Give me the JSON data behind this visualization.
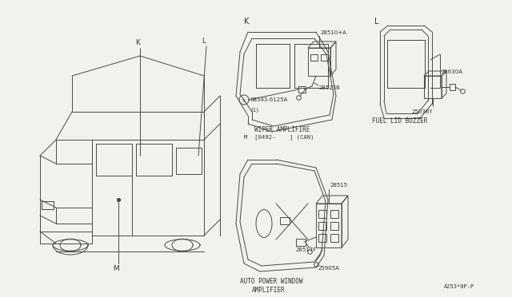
{
  "bg_color": "#f2f2ec",
  "line_color": "#4a4a4a",
  "border_color": "#aaaaaa",
  "text_color": "#333333",
  "diagram_label_K": "K",
  "diagram_label_L": "L",
  "car_label_K": "K",
  "car_label_L": "L",
  "car_label_M": "M",
  "parts": {
    "wiper_amp_number": "28510+A",
    "wiper_conn1": "28523B",
    "wiper_bolt": "08543-6125A",
    "wiper_bolt_note": "(1)",
    "wiper_label1": "WIPER AMPLIFIRE",
    "wiper_label2": "M  [0492-    ] (CAN)",
    "fuel_part1": "25630A",
    "fuel_part2": "25038Y",
    "fuel_label": "FUEL LID BUZZER",
    "pw_number": "28515",
    "pw_conn1": "28517F",
    "pw_conn2": "25905A",
    "pw_label1": "AUTO POWER WINDOW",
    "pw_label2": "AMPLIFIER"
  },
  "footnote": "A253*0P-P"
}
